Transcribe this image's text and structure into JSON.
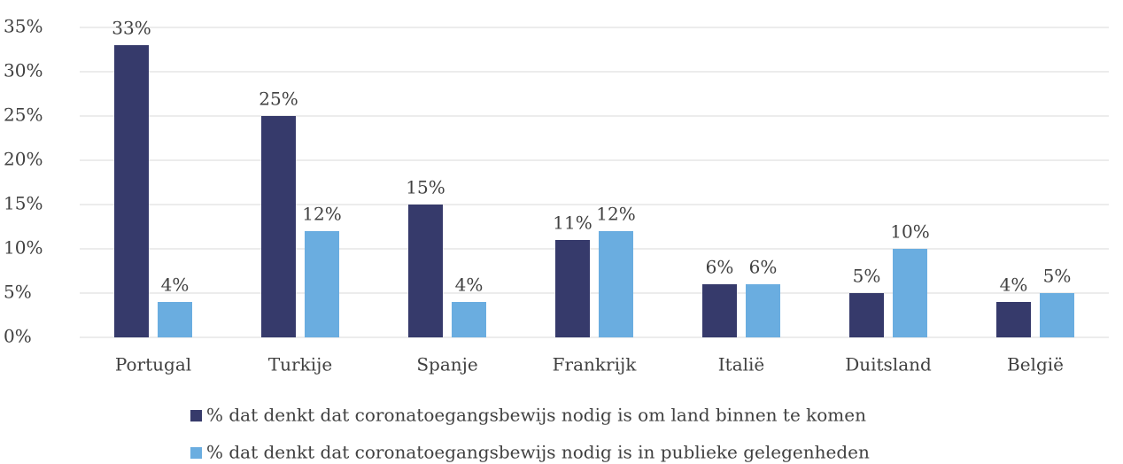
{
  "chart_data": {
    "type": "bar",
    "categories": [
      "Portugal",
      "Turkije",
      "Spanje",
      "Frankrijk",
      "Italië",
      "Duitsland",
      "België"
    ],
    "series": [
      {
        "name": "% dat denkt dat coronatoegangsbewijs nodig is om land binnen te komen",
        "color": "#363a6b",
        "values": [
          33,
          25,
          15,
          11,
          6,
          5,
          4
        ],
        "value_labels": [
          "33%",
          "25%",
          "15%",
          "11%",
          "6%",
          "5%",
          "4%"
        ]
      },
      {
        "name": "% dat denkt dat coronatoegangsbewijs nodig is in publieke gelegenheden",
        "color": "#6aade0",
        "values": [
          4,
          12,
          4,
          12,
          6,
          10,
          5
        ],
        "value_labels": [
          "4%",
          "12%",
          "4%",
          "12%",
          "6%",
          "10%",
          "5%"
        ]
      }
    ],
    "ylim": [
      0,
      35
    ],
    "yticks": [
      {
        "value": 0,
        "label": "0%"
      },
      {
        "value": 5,
        "label": "5%"
      },
      {
        "value": 10,
        "label": "10%"
      },
      {
        "value": 15,
        "label": "15%"
      },
      {
        "value": 20,
        "label": "20%"
      },
      {
        "value": 25,
        "label": "25%"
      },
      {
        "value": 30,
        "label": "30%"
      },
      {
        "value": 35,
        "label": "35%"
      }
    ],
    "grid": true
  }
}
